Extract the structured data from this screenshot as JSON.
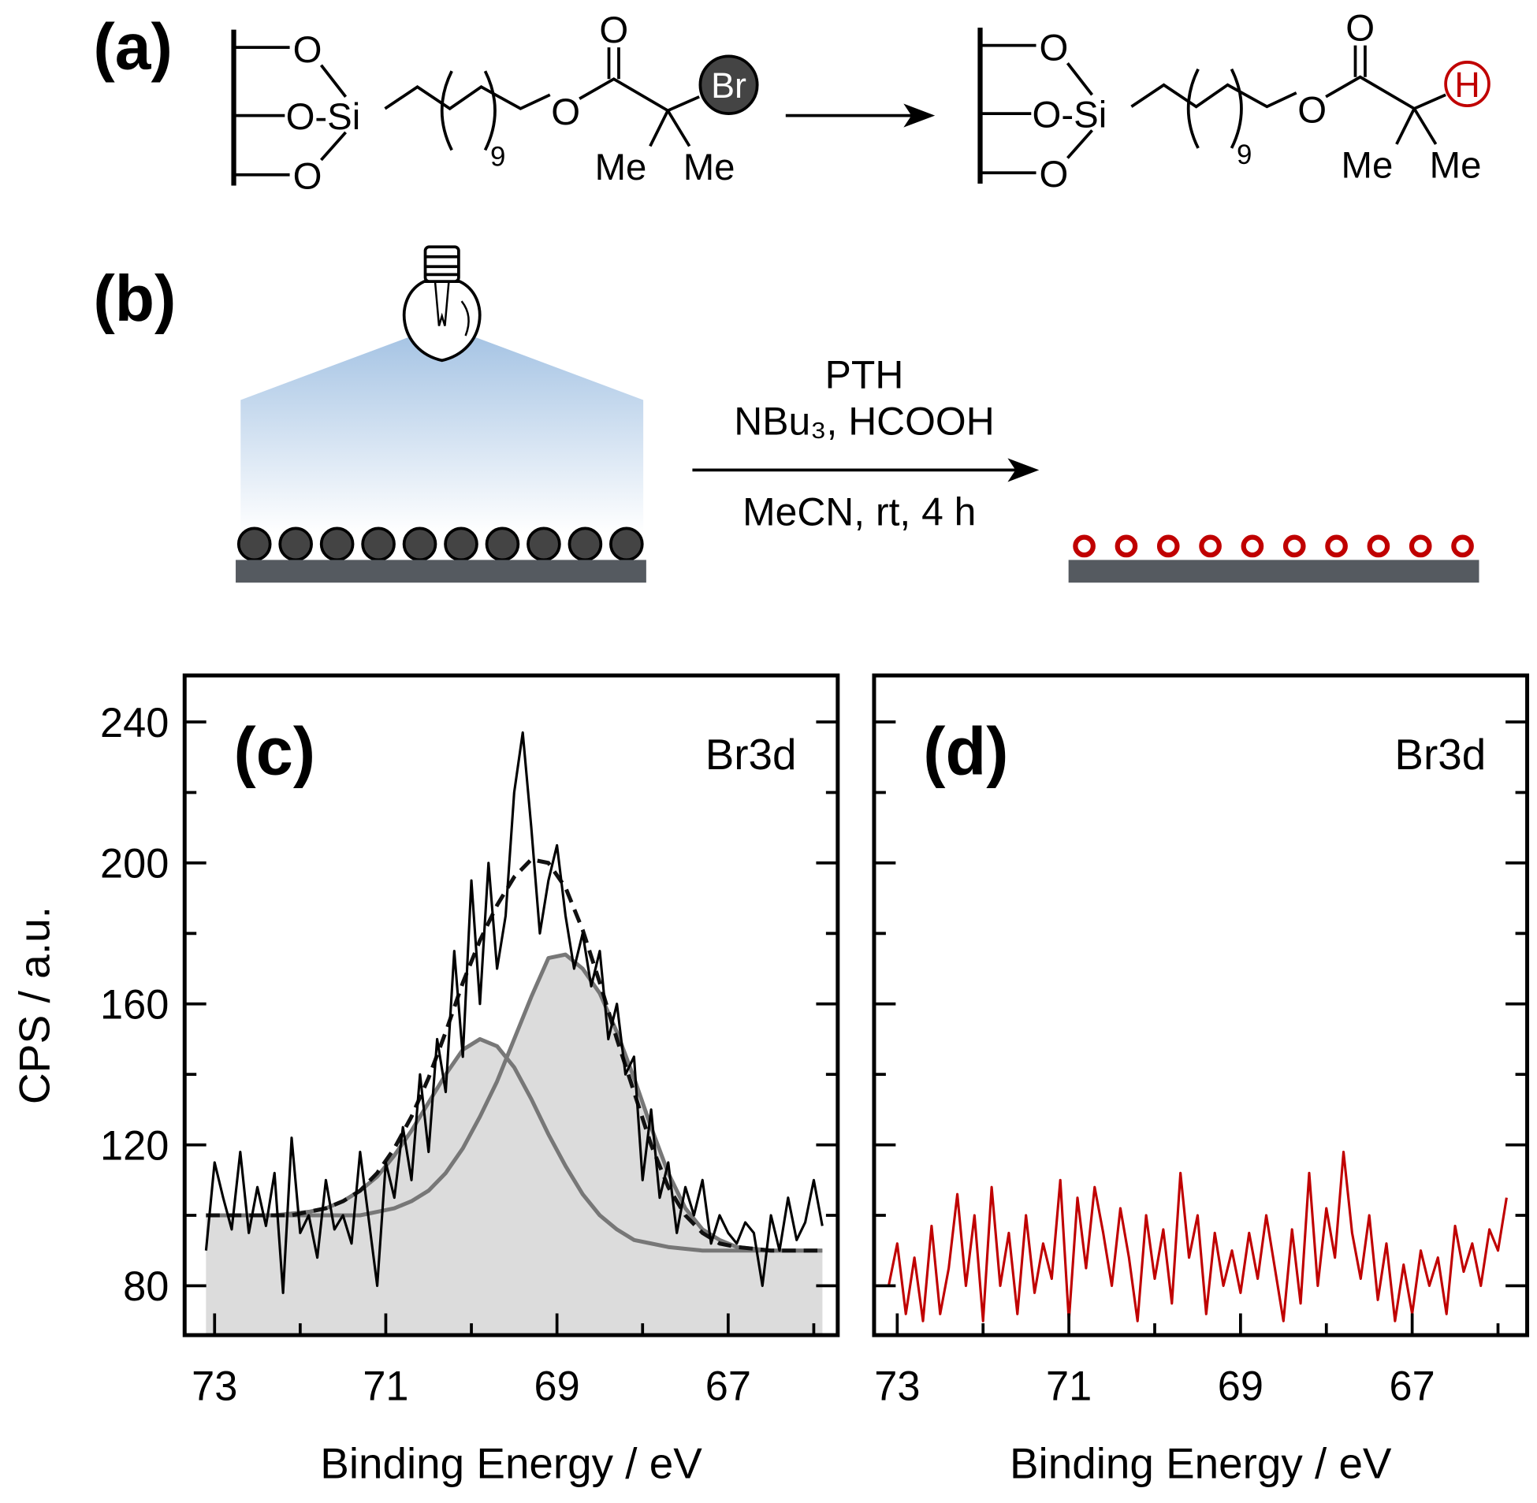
{
  "scheme_a": {
    "label": "(a)",
    "reactant": {
      "o_top": "O",
      "o_si": "O-Si",
      "o_bottom": "O",
      "repeat": "9",
      "o_ester": "O",
      "o_carbonyl": "O",
      "end_group": "Br",
      "me_left": "Me",
      "me_right": "Me"
    },
    "product": {
      "o_top": "O",
      "o_si": "O-Si",
      "o_bottom": "O",
      "repeat": "9",
      "o_ester": "O",
      "o_carbonyl": "O",
      "end_group": "H",
      "me_left": "Me",
      "me_right": "Me"
    }
  },
  "scheme_b": {
    "label": "(b)",
    "reagent": "PTH",
    "additives": "NBu₃, HCOOH",
    "conditions": "MeCN, rt, 4 h"
  },
  "chart_data": [
    {
      "type": "line",
      "panel_label": "(c)",
      "annotation": "Br3d",
      "xlabel": "Binding Energy / eV",
      "ylabel": "CPS / a.u.",
      "xlim": [
        73.35,
        65.72
      ],
      "xticks": [
        73,
        71,
        69,
        67
      ],
      "xminor": [
        72,
        70,
        68,
        66
      ],
      "ylim": [
        66,
        253.2
      ],
      "yticks": [
        80,
        120,
        160,
        200,
        240
      ],
      "yminor": [
        100,
        140,
        180,
        220
      ],
      "show_ytick_labels": true,
      "series": [
        {
          "style": "solid",
          "color": "#777777",
          "fill": "#dcdcdc",
          "x": [
            73.1,
            72.9,
            72.7,
            72.5,
            72.3,
            72.1,
            71.9,
            71.7,
            71.5,
            71.3,
            71.1,
            70.9,
            70.7,
            70.5,
            70.3,
            70.1,
            69.9,
            69.7,
            69.5,
            69.3,
            69.1,
            68.9,
            68.7,
            68.5,
            68.3,
            68.1,
            67.9,
            67.7,
            67.5,
            67.3,
            67.1,
            66.9,
            66.7,
            66.5,
            66.3,
            66.1,
            65.9
          ],
          "values": [
            100,
            100,
            100,
            100,
            100,
            100.5,
            101,
            102,
            104,
            107,
            111,
            117,
            124,
            132,
            140,
            147,
            150,
            148,
            142,
            133,
            123,
            114,
            106,
            100,
            96,
            93,
            92,
            91,
            90.5,
            90,
            90,
            90,
            90,
            90,
            90,
            90,
            90
          ]
        },
        {
          "style": "solid",
          "color": "#777777",
          "fill": "#dcdcdc",
          "x": [
            73.1,
            72.9,
            72.7,
            72.5,
            72.3,
            72.1,
            71.9,
            71.7,
            71.5,
            71.3,
            71.1,
            70.9,
            70.7,
            70.5,
            70.3,
            70.1,
            69.9,
            69.7,
            69.5,
            69.3,
            69.1,
            68.9,
            68.7,
            68.5,
            68.3,
            68.1,
            67.9,
            67.7,
            67.5,
            67.3,
            67.1,
            66.9,
            66.7,
            66.5,
            66.3,
            66.1,
            65.9
          ],
          "values": [
            100,
            100,
            100,
            100,
            100,
            100,
            100,
            100,
            100,
            100,
            101,
            102,
            104,
            107,
            112,
            119,
            128,
            138,
            150,
            162,
            173,
            174,
            170,
            163,
            152,
            139,
            125,
            112,
            102,
            96,
            93,
            91,
            90.5,
            90,
            90,
            90,
            90
          ]
        },
        {
          "style": "dashed",
          "color": "#111111",
          "x": [
            73.1,
            72.9,
            72.7,
            72.5,
            72.3,
            72.1,
            71.9,
            71.7,
            71.5,
            71.3,
            71.1,
            70.9,
            70.7,
            70.5,
            70.3,
            70.1,
            69.9,
            69.7,
            69.5,
            69.3,
            69.1,
            68.9,
            68.7,
            68.5,
            68.3,
            68.1,
            67.9,
            67.7,
            67.5,
            67.3,
            67.1,
            66.9,
            66.7,
            66.5,
            66.3,
            66.1,
            65.9
          ],
          "values": [
            100,
            100,
            100,
            100,
            100,
            100,
            101,
            102,
            104,
            107,
            112,
            119,
            128,
            139,
            152,
            166,
            178,
            188,
            196,
            201,
            200,
            193,
            181,
            166,
            150,
            135,
            120,
            108,
            100,
            95,
            92,
            91,
            90.5,
            90,
            90,
            90,
            90
          ]
        },
        {
          "style": "solid",
          "color": "#000000",
          "x": [
            73.1,
            73,
            72.9,
            72.8,
            72.7,
            72.6,
            72.5,
            72.4,
            72.3,
            72.2,
            72.1,
            72,
            71.9,
            71.8,
            71.7,
            71.6,
            71.5,
            71.4,
            71.3,
            71.2,
            71.1,
            71,
            70.9,
            70.8,
            70.7,
            70.6,
            70.5,
            70.4,
            70.3,
            70.2,
            70.1,
            70,
            69.9,
            69.8,
            69.7,
            69.6,
            69.5,
            69.4,
            69.3,
            69.2,
            69.1,
            69,
            68.9,
            68.8,
            68.7,
            68.6,
            68.5,
            68.4,
            68.3,
            68.2,
            68.1,
            68,
            67.9,
            67.8,
            67.7,
            67.6,
            67.5,
            67.4,
            67.3,
            67.2,
            67.1,
            67,
            66.9,
            66.8,
            66.7,
            66.6,
            66.5,
            66.4,
            66.3,
            66.2,
            66.1,
            66,
            65.9
          ],
          "values": [
            90,
            115,
            105,
            96,
            118,
            95,
            108,
            97,
            112,
            78,
            122,
            95,
            100,
            88,
            110,
            96,
            100,
            92,
            118,
            99,
            80,
            115,
            105,
            125,
            110,
            140,
            118,
            150,
            135,
            175,
            145,
            195,
            160,
            200,
            170,
            185,
            220,
            237,
            210,
            180,
            195,
            205,
            185,
            170,
            180,
            165,
            175,
            150,
            160,
            140,
            145,
            110,
            130,
            105,
            115,
            95,
            108,
            100,
            110,
            92,
            100,
            95,
            92,
            98,
            95,
            80,
            100,
            90,
            105,
            93,
            98,
            110,
            97
          ]
        }
      ]
    },
    {
      "type": "line",
      "panel_label": "(d)",
      "annotation": "Br3d",
      "xlabel": "Binding Energy / eV",
      "xlim": [
        73.27,
        65.66
      ],
      "xticks": [
        73,
        71,
        69,
        67
      ],
      "xminor": [
        72,
        70,
        68,
        66
      ],
      "ylim": [
        66,
        253.2
      ],
      "yticks": [
        80,
        120,
        160,
        200,
        240
      ],
      "yminor": [
        100,
        140,
        180,
        220
      ],
      "show_ytick_labels": false,
      "series": [
        {
          "style": "solid",
          "color": "#c00000",
          "x": [
            73.1,
            73,
            72.9,
            72.8,
            72.7,
            72.6,
            72.5,
            72.4,
            72.3,
            72.2,
            72.1,
            72,
            71.9,
            71.8,
            71.7,
            71.6,
            71.5,
            71.4,
            71.3,
            71.2,
            71.1,
            71,
            70.9,
            70.8,
            70.7,
            70.6,
            70.5,
            70.4,
            70.3,
            70.2,
            70.1,
            70,
            69.9,
            69.8,
            69.7,
            69.6,
            69.5,
            69.4,
            69.3,
            69.2,
            69.1,
            69,
            68.9,
            68.8,
            68.7,
            68.6,
            68.5,
            68.4,
            68.3,
            68.2,
            68.1,
            68,
            67.9,
            67.8,
            67.7,
            67.6,
            67.5,
            67.4,
            67.3,
            67.2,
            67.1,
            67,
            66.9,
            66.8,
            66.7,
            66.6,
            66.5,
            66.4,
            66.3,
            66.2,
            66.1,
            66,
            65.9
          ],
          "values": [
            80,
            92,
            72,
            88,
            70,
            97,
            72,
            85,
            106,
            80,
            100,
            70,
            108,
            80,
            95,
            72,
            100,
            78,
            92,
            82,
            110,
            70,
            105,
            85,
            108,
            95,
            80,
            102,
            88,
            70,
            100,
            82,
            96,
            75,
            112,
            88,
            100,
            72,
            95,
            80,
            90,
            78,
            95,
            82,
            100,
            85,
            70,
            96,
            75,
            112,
            80,
            102,
            88,
            118,
            95,
            82,
            100,
            76,
            92,
            70,
            86,
            72,
            90,
            80,
            88,
            72,
            97,
            84,
            92,
            80,
            96,
            90,
            105
          ]
        }
      ]
    }
  ]
}
